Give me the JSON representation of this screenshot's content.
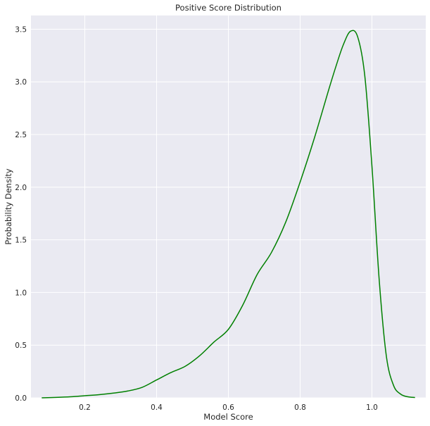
{
  "chart_data": {
    "type": "line",
    "title": "Positive Score Distribution",
    "xlabel": "Model Score",
    "ylabel": "Probability Density",
    "xlim": [
      0.05,
      1.15
    ],
    "ylim": [
      0,
      3.63
    ],
    "xticks": [
      0.2,
      0.4,
      0.6,
      0.8,
      1.0
    ],
    "xtick_labels": [
      "0.2",
      "0.4",
      "0.6",
      "0.8",
      "1.0"
    ],
    "yticks": [
      0.0,
      0.5,
      1.0,
      1.5,
      2.0,
      2.5,
      3.0,
      3.5
    ],
    "ytick_labels": [
      "0.0",
      "0.5",
      "1.0",
      "1.5",
      "2.0",
      "2.5",
      "3.0",
      "3.5"
    ],
    "grid": true,
    "background_color": "#EAEAF2",
    "grid_color": "#FFFFFF",
    "series": [
      {
        "color": "#008000",
        "x": [
          0.08,
          0.12,
          0.16,
          0.2,
          0.24,
          0.28,
          0.32,
          0.36,
          0.4,
          0.44,
          0.48,
          0.52,
          0.56,
          0.6,
          0.64,
          0.68,
          0.72,
          0.76,
          0.8,
          0.84,
          0.88,
          0.9,
          0.92,
          0.94,
          0.96,
          0.98,
          1.0,
          1.02,
          1.04,
          1.06,
          1.08,
          1.1,
          1.12
        ],
        "y": [
          0.0,
          0.004,
          0.01,
          0.02,
          0.03,
          0.045,
          0.065,
          0.1,
          0.17,
          0.24,
          0.3,
          0.4,
          0.53,
          0.65,
          0.88,
          1.17,
          1.38,
          1.67,
          2.05,
          2.47,
          2.93,
          3.15,
          3.35,
          3.48,
          3.43,
          3.06,
          2.2,
          1.13,
          0.4,
          0.12,
          0.035,
          0.01,
          0.003
        ]
      }
    ]
  }
}
